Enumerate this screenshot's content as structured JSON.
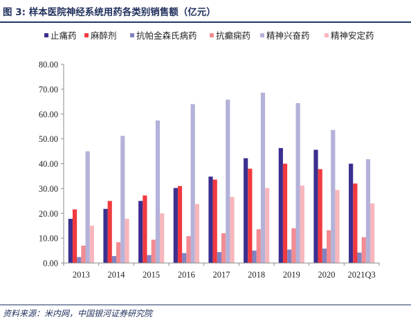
{
  "header": {
    "title": "图 3:  样本医院神经系统用药各类别销售额（亿元）"
  },
  "footer": {
    "source": "资料来源：米内网，中国银河证券研究院"
  },
  "chart_data": {
    "type": "bar",
    "title": "样本医院神经系统用药各类别销售额（亿元）",
    "xlabel": "",
    "ylabel": "",
    "ylim": [
      0,
      80
    ],
    "yticks": [
      "0.00",
      "10.00",
      "20.00",
      "30.00",
      "40.00",
      "50.00",
      "60.00",
      "70.00",
      "80.00"
    ],
    "categories": [
      "2013",
      "2014",
      "2015",
      "2016",
      "2017",
      "2018",
      "2019",
      "2020",
      "2021Q3"
    ],
    "grid": false,
    "legend_position": "top",
    "series": [
      {
        "name": "止痛药",
        "color": "#3b2f8f",
        "values": [
          17.8,
          21.8,
          25.0,
          30.2,
          34.8,
          42.2,
          46.3,
          45.6,
          40.0
        ]
      },
      {
        "name": "麻醉剂",
        "color": "#f03a40",
        "values": [
          21.6,
          25.0,
          27.2,
          31.0,
          33.6,
          38.0,
          40.0,
          37.8,
          32.0
        ]
      },
      {
        "name": "抗帕金森氏病药",
        "color": "#8182c2",
        "values": [
          2.4,
          2.8,
          3.2,
          4.0,
          4.4,
          5.0,
          5.4,
          5.8,
          4.2
        ]
      },
      {
        "name": "抗癫痫药",
        "color": "#f28b92",
        "values": [
          7.0,
          8.4,
          9.4,
          10.8,
          12.0,
          13.6,
          14.0,
          13.2,
          10.4
        ]
      },
      {
        "name": "精神兴奋药",
        "color": "#b4b2d9",
        "values": [
          45.0,
          51.2,
          57.4,
          64.0,
          65.8,
          68.6,
          64.4,
          53.6,
          41.8
        ]
      },
      {
        "name": "精神安定药",
        "color": "#f7b6bb",
        "values": [
          15.0,
          17.8,
          20.0,
          23.8,
          26.6,
          30.2,
          31.2,
          29.4,
          24.0
        ]
      }
    ]
  }
}
